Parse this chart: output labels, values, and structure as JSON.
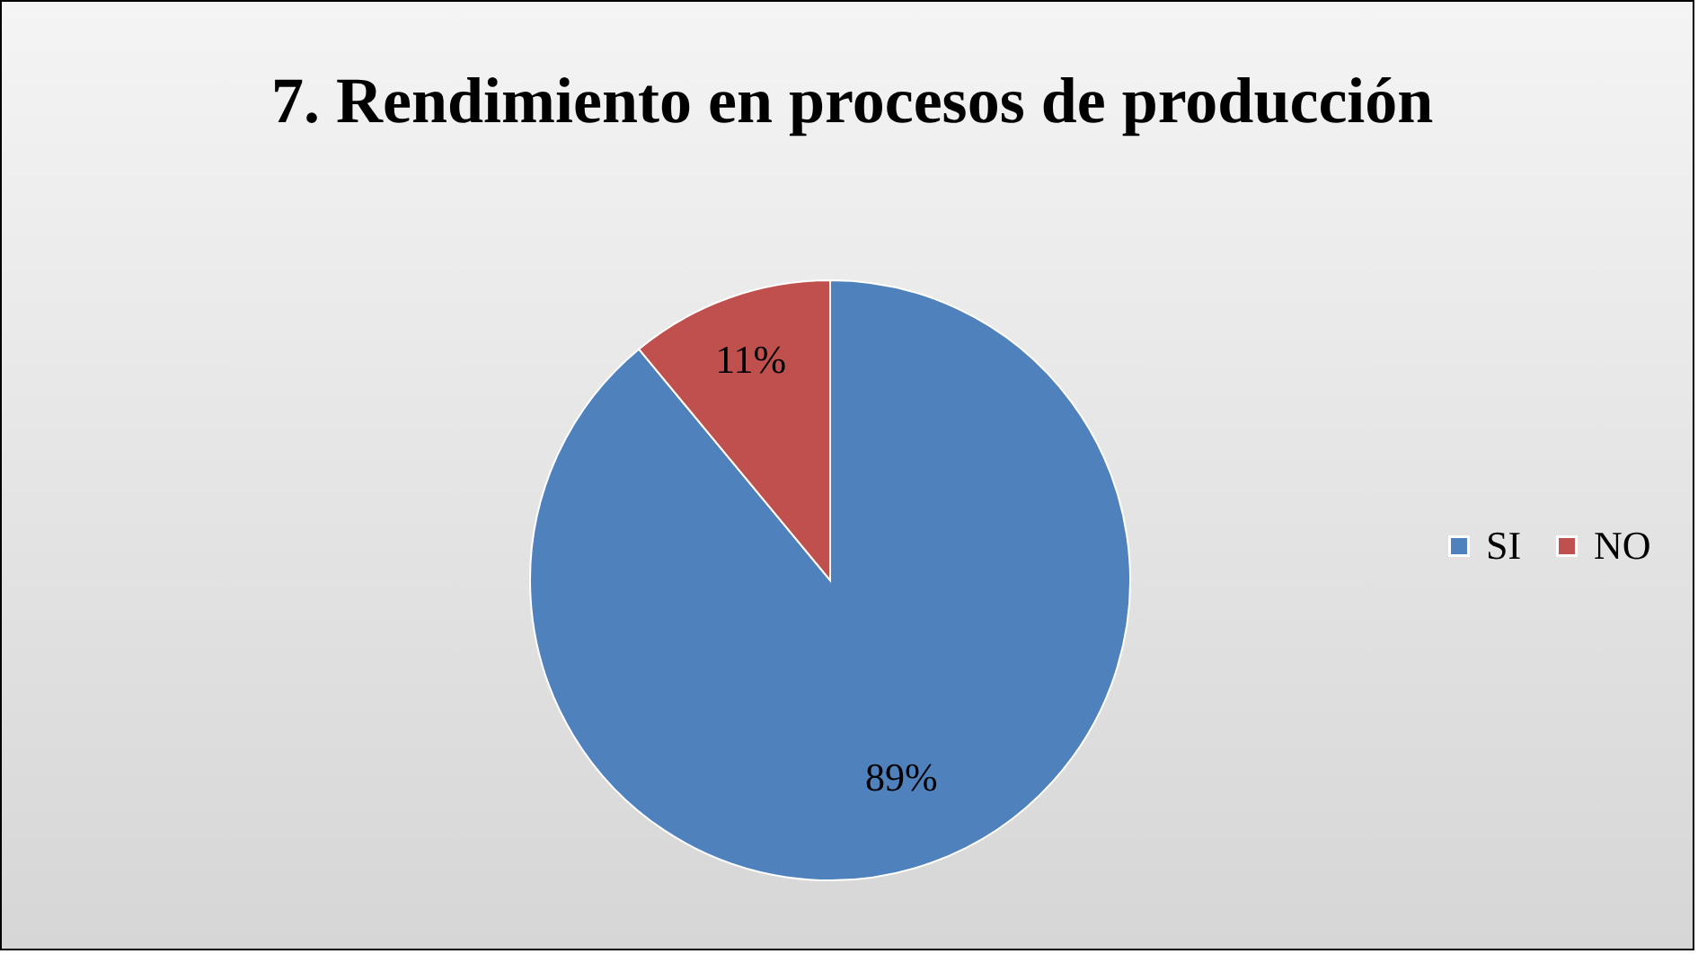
{
  "chart_data": {
    "type": "pie",
    "title": "7. Rendimiento en procesos de producción",
    "categories": [
      "SI",
      "NO"
    ],
    "values": [
      89,
      11
    ],
    "colors": [
      "#4f81bd",
      "#c0504d"
    ],
    "value_labels": [
      "89%",
      "11%"
    ],
    "data_labels": true,
    "legend": "right"
  }
}
